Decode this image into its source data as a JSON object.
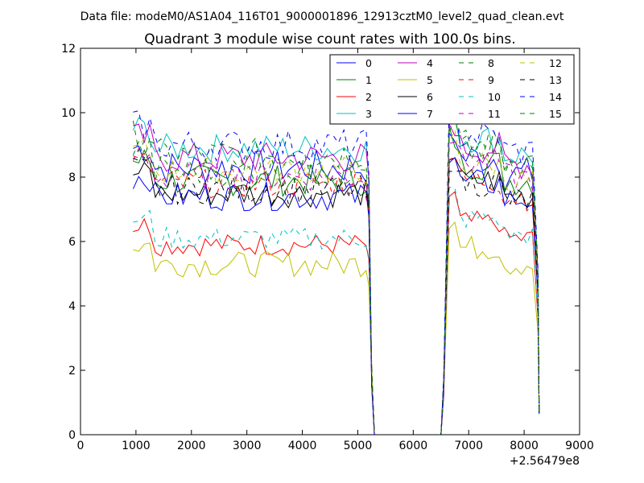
{
  "suptitle": "Data file: modeM0/AS1A04_116T01_9000001896_12913cztM0_level2_quad_clean.evt",
  "chart_data": {
    "type": "line",
    "title": "Quadrant 3 module wise count rates with 100.0s bins.",
    "xlabel": "",
    "ylabel": "",
    "x_offset_label": "+2.56479e8",
    "xlim": [
      0,
      9000
    ],
    "ylim": [
      0,
      12
    ],
    "xticks": [
      0,
      1000,
      2000,
      3000,
      4000,
      5000,
      6000,
      7000,
      8000,
      9000
    ],
    "yticks": [
      0,
      2,
      4,
      6,
      8,
      10,
      12
    ],
    "xtick_labels": [
      "0",
      "1000",
      "2000",
      "3000",
      "4000",
      "5000",
      "6000",
      "7000",
      "8000",
      "9000"
    ],
    "ytick_labels": [
      "0",
      "2",
      "4",
      "6",
      "8",
      "10",
      "12"
    ],
    "grid": false,
    "legend_position": "top-right",
    "legend_columns": 4,
    "segments": [
      {
        "x_start": 950,
        "x_end": 5150,
        "x_step": 100
      },
      {
        "x_start": 6650,
        "x_end": 8150,
        "x_step": 100
      }
    ],
    "drop_points": [
      [
        5250,
        1.8
      ],
      [
        5300,
        0.0
      ],
      [
        5400,
        0.0
      ],
      [
        6200,
        0.0
      ],
      [
        6500,
        0.0
      ],
      [
        6550,
        1.5
      ]
    ],
    "end_point": {
      "x": 8270,
      "y": 0.7
    },
    "series": [
      {
        "name": "0",
        "color": "#0000ff",
        "dash": "solid",
        "level1": 8.3,
        "level2": 8.6,
        "noise": 0.55
      },
      {
        "name": "1",
        "color": "#007f00",
        "dash": "solid",
        "level1": 7.9,
        "level2": 8.4,
        "noise": 0.5
      },
      {
        "name": "2",
        "color": "#ff0000",
        "dash": "solid",
        "level1": 5.9,
        "level2": 6.6,
        "noise": 0.35
      },
      {
        "name": "3",
        "color": "#00bfbf",
        "dash": "solid",
        "level1": 8.9,
        "level2": 9.2,
        "noise": 0.45
      },
      {
        "name": "4",
        "color": "#bf00bf",
        "dash": "solid",
        "level1": 8.6,
        "level2": 8.9,
        "noise": 0.5
      },
      {
        "name": "5",
        "color": "#bfbf00",
        "dash": "solid",
        "level1": 5.3,
        "level2": 5.8,
        "noise": 0.4
      },
      {
        "name": "6",
        "color": "#000000",
        "dash": "solid",
        "level1": 7.5,
        "level2": 7.9,
        "noise": 0.45
      },
      {
        "name": "7",
        "color": "#0000ff",
        "dash": "solid",
        "level1": 7.4,
        "level2": 7.8,
        "noise": 0.45
      },
      {
        "name": "8",
        "color": "#007f00",
        "dash": "dashed",
        "level1": 8.7,
        "level2": 9.0,
        "noise": 0.5
      },
      {
        "name": "9",
        "color": "#ff0000",
        "dash": "dashed",
        "level1": 7.8,
        "level2": 7.9,
        "noise": 0.45
      },
      {
        "name": "10",
        "color": "#00bfbf",
        "dash": "dashed",
        "level1": 6.1,
        "level2": 6.7,
        "noise": 0.35
      },
      {
        "name": "11",
        "color": "#bf00bf",
        "dash": "dashed",
        "level1": 8.0,
        "level2": 8.5,
        "noise": 0.45
      },
      {
        "name": "12",
        "color": "#bfbf00",
        "dash": "dashed",
        "level1": 8.2,
        "level2": 8.4,
        "noise": 0.45
      },
      {
        "name": "13",
        "color": "#000000",
        "dash": "dashed",
        "level1": 7.6,
        "level2": 7.8,
        "noise": 0.45
      },
      {
        "name": "14",
        "color": "#0000ff",
        "dash": "dashed",
        "level1": 9.0,
        "level2": 9.3,
        "noise": 0.5
      },
      {
        "name": "15",
        "color": "#007f00",
        "dash": "dashed",
        "level1": 8.2,
        "level2": 8.8,
        "noise": 0.5
      }
    ]
  }
}
